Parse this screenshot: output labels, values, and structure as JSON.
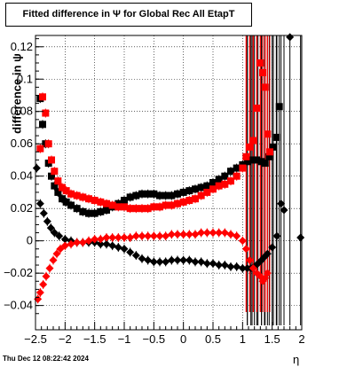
{
  "chart_data": {
    "type": "scatter",
    "title": "Fitted difference in  Ψ  for Global Rec All EtapT",
    "xlabel": "η",
    "ylabel": "difference in ψ",
    "xlim": [
      -2.5,
      2.0
    ],
    "ylim": [
      -0.055,
      0.127
    ],
    "xticks": [
      -2.5,
      -2,
      -1.5,
      -1,
      -0.5,
      0,
      0.5,
      1,
      1.5,
      2
    ],
    "xtick_labels": [
      "−2.5",
      "−2",
      "−1.5",
      "−1",
      "−0.5",
      "0",
      "0.5",
      "1",
      "1.5",
      "2"
    ],
    "yticks": [
      -0.04,
      -0.02,
      0,
      0.02,
      0.04,
      0.06,
      0.08,
      0.1,
      0.12
    ],
    "ytick_labels": [
      "−0.04",
      "−0.02",
      "0",
      "0.02",
      "0.04",
      "0.06",
      "0.08",
      "0.1",
      "0.12"
    ],
    "grid": true,
    "series": [
      {
        "color": "#000000",
        "marker": "square",
        "points": [
          [
            -2.42,
            0.088
          ],
          [
            -2.38,
            0.072
          ],
          [
            -2.33,
            0.06
          ],
          [
            -2.28,
            0.048
          ],
          [
            -2.23,
            0.04
          ],
          [
            -2.18,
            0.034
          ],
          [
            -2.12,
            0.03
          ],
          [
            -2.05,
            0.026
          ],
          [
            -1.98,
            0.024
          ],
          [
            -1.9,
            0.022
          ],
          [
            -1.8,
            0.02
          ],
          [
            -1.7,
            0.018
          ],
          [
            -1.6,
            0.017
          ],
          [
            -1.5,
            0.017
          ],
          [
            -1.4,
            0.018
          ],
          [
            -1.3,
            0.019
          ],
          [
            -1.2,
            0.021
          ],
          [
            -1.1,
            0.023
          ],
          [
            -1.0,
            0.025
          ],
          [
            -0.9,
            0.027
          ],
          [
            -0.8,
            0.028
          ],
          [
            -0.7,
            0.029
          ],
          [
            -0.6,
            0.029
          ],
          [
            -0.5,
            0.029
          ],
          [
            -0.4,
            0.028
          ],
          [
            -0.3,
            0.028
          ],
          [
            -0.2,
            0.028
          ],
          [
            -0.1,
            0.029
          ],
          [
            0.0,
            0.03
          ],
          [
            0.1,
            0.031
          ],
          [
            0.2,
            0.032
          ],
          [
            0.3,
            0.033
          ],
          [
            0.4,
            0.034
          ],
          [
            0.5,
            0.036
          ],
          [
            0.6,
            0.038
          ],
          [
            0.7,
            0.04
          ],
          [
            0.8,
            0.043
          ],
          [
            0.9,
            0.045
          ],
          [
            1.0,
            0.047
          ],
          [
            1.08,
            0.049
          ],
          [
            1.16,
            0.05
          ],
          [
            1.24,
            0.05
          ],
          [
            1.32,
            0.049
          ],
          [
            1.38,
            0.048
          ],
          [
            1.45,
            0.052
          ],
          [
            1.52,
            0.058
          ],
          [
            1.57,
            0.064
          ],
          [
            1.62,
            0.083
          ]
        ]
      },
      {
        "color": "#000000",
        "marker": "circle",
        "points": [
          [
            -2.48,
            0.045
          ],
          [
            -2.42,
            0.023
          ],
          [
            -2.36,
            0.017
          ],
          [
            -2.3,
            0.012
          ],
          [
            -2.24,
            0.008
          ],
          [
            -2.18,
            0.005
          ],
          [
            -2.1,
            0.003
          ],
          [
            -2.0,
            0.001
          ],
          [
            -1.9,
            0.0
          ],
          [
            -1.8,
            -0.001
          ],
          [
            -1.7,
            -0.001
          ],
          [
            -1.6,
            -0.001
          ],
          [
            -1.5,
            -0.001
          ],
          [
            -1.4,
            -0.002
          ],
          [
            -1.3,
            -0.002
          ],
          [
            -1.2,
            -0.003
          ],
          [
            -1.1,
            -0.004
          ],
          [
            -1.0,
            -0.005
          ],
          [
            -0.9,
            -0.007
          ],
          [
            -0.8,
            -0.009
          ],
          [
            -0.7,
            -0.011
          ],
          [
            -0.6,
            -0.012
          ],
          [
            -0.5,
            -0.013
          ],
          [
            -0.4,
            -0.013
          ],
          [
            -0.3,
            -0.013
          ],
          [
            -0.2,
            -0.012
          ],
          [
            -0.1,
            -0.012
          ],
          [
            0.0,
            -0.012
          ],
          [
            0.1,
            -0.012
          ],
          [
            0.2,
            -0.013
          ],
          [
            0.3,
            -0.013
          ],
          [
            0.4,
            -0.014
          ],
          [
            0.5,
            -0.014
          ],
          [
            0.6,
            -0.015
          ],
          [
            0.7,
            -0.015
          ],
          [
            0.8,
            -0.016
          ],
          [
            0.9,
            -0.016
          ],
          [
            1.0,
            -0.017
          ],
          [
            1.08,
            -0.017
          ],
          [
            1.14,
            -0.017
          ],
          [
            1.2,
            -0.016
          ],
          [
            1.26,
            -0.014
          ],
          [
            1.32,
            -0.012
          ],
          [
            1.37,
            -0.01
          ],
          [
            1.42,
            -0.008
          ],
          [
            1.5,
            -0.004
          ],
          [
            1.58,
            0.003
          ],
          [
            1.65,
            0.023
          ],
          [
            1.7,
            0.019
          ],
          [
            1.8,
            0.126
          ],
          [
            1.98,
            0.002
          ]
        ]
      },
      {
        "color": "#ff0000",
        "marker": "square",
        "points": [
          [
            -2.42,
            0.057
          ],
          [
            -2.38,
            0.089
          ],
          [
            -2.33,
            0.079
          ],
          [
            -2.28,
            0.06
          ],
          [
            -2.23,
            0.05
          ],
          [
            -2.18,
            0.043
          ],
          [
            -2.12,
            0.037
          ],
          [
            -2.05,
            0.033
          ],
          [
            -1.98,
            0.031
          ],
          [
            -1.9,
            0.029
          ],
          [
            -1.8,
            0.028
          ],
          [
            -1.7,
            0.027
          ],
          [
            -1.6,
            0.026
          ],
          [
            -1.5,
            0.025
          ],
          [
            -1.4,
            0.024
          ],
          [
            -1.3,
            0.023
          ],
          [
            -1.2,
            0.022
          ],
          [
            -1.1,
            0.021
          ],
          [
            -1.0,
            0.021
          ],
          [
            -0.9,
            0.02
          ],
          [
            -0.8,
            0.02
          ],
          [
            -0.7,
            0.02
          ],
          [
            -0.6,
            0.02
          ],
          [
            -0.5,
            0.021
          ],
          [
            -0.4,
            0.021
          ],
          [
            -0.3,
            0.022
          ],
          [
            -0.2,
            0.022
          ],
          [
            -0.1,
            0.023
          ],
          [
            0.0,
            0.024
          ],
          [
            0.1,
            0.025
          ],
          [
            0.2,
            0.026
          ],
          [
            0.3,
            0.028
          ],
          [
            0.4,
            0.03
          ],
          [
            0.5,
            0.032
          ],
          [
            0.6,
            0.034
          ],
          [
            0.7,
            0.035
          ],
          [
            0.8,
            0.037
          ],
          [
            0.9,
            0.04
          ],
          [
            1.0,
            0.045
          ],
          [
            1.06,
            0.052
          ],
          [
            1.12,
            0.058
          ],
          [
            1.18,
            0.062
          ],
          [
            1.24,
            0.082
          ],
          [
            1.3,
            0.11
          ],
          [
            1.34,
            0.104
          ],
          [
            1.38,
            0.095
          ],
          [
            1.42,
            0.066
          ],
          [
            1.46,
            0.055
          ]
        ]
      },
      {
        "color": "#ff0000",
        "marker": "circle",
        "points": [
          [
            -2.46,
            -0.036
          ],
          [
            -2.42,
            -0.032
          ],
          [
            -2.37,
            -0.027
          ],
          [
            -2.32,
            -0.022
          ],
          [
            -2.26,
            -0.017
          ],
          [
            -2.2,
            -0.012
          ],
          [
            -2.14,
            -0.008
          ],
          [
            -2.08,
            -0.005
          ],
          [
            -2.0,
            -0.003
          ],
          [
            -1.9,
            -0.002
          ],
          [
            -1.8,
            -0.001
          ],
          [
            -1.7,
            -0.001
          ],
          [
            -1.6,
            0.0
          ],
          [
            -1.5,
            0.001
          ],
          [
            -1.4,
            0.001
          ],
          [
            -1.3,
            0.002
          ],
          [
            -1.2,
            0.002
          ],
          [
            -1.1,
            0.002
          ],
          [
            -1.0,
            0.002
          ],
          [
            -0.9,
            0.002
          ],
          [
            -0.8,
            0.003
          ],
          [
            -0.7,
            0.003
          ],
          [
            -0.6,
            0.003
          ],
          [
            -0.5,
            0.003
          ],
          [
            -0.4,
            0.003
          ],
          [
            -0.3,
            0.003
          ],
          [
            -0.2,
            0.004
          ],
          [
            -0.1,
            0.004
          ],
          [
            0.0,
            0.004
          ],
          [
            0.1,
            0.004
          ],
          [
            0.2,
            0.004
          ],
          [
            0.3,
            0.005
          ],
          [
            0.4,
            0.005
          ],
          [
            0.5,
            0.005
          ],
          [
            0.6,
            0.005
          ],
          [
            0.7,
            0.005
          ],
          [
            0.8,
            0.004
          ],
          [
            0.9,
            0.003
          ],
          [
            1.0,
            0.0
          ],
          [
            1.06,
            -0.005
          ],
          [
            1.12,
            -0.012
          ],
          [
            1.18,
            -0.017
          ],
          [
            1.24,
            -0.02
          ],
          [
            1.3,
            -0.022
          ],
          [
            1.34,
            -0.025
          ],
          [
            1.38,
            -0.023
          ],
          [
            1.42,
            -0.02
          ]
        ]
      }
    ]
  },
  "footer": {
    "timestamp": "Thu Dec 12 08:22:42 2024"
  }
}
